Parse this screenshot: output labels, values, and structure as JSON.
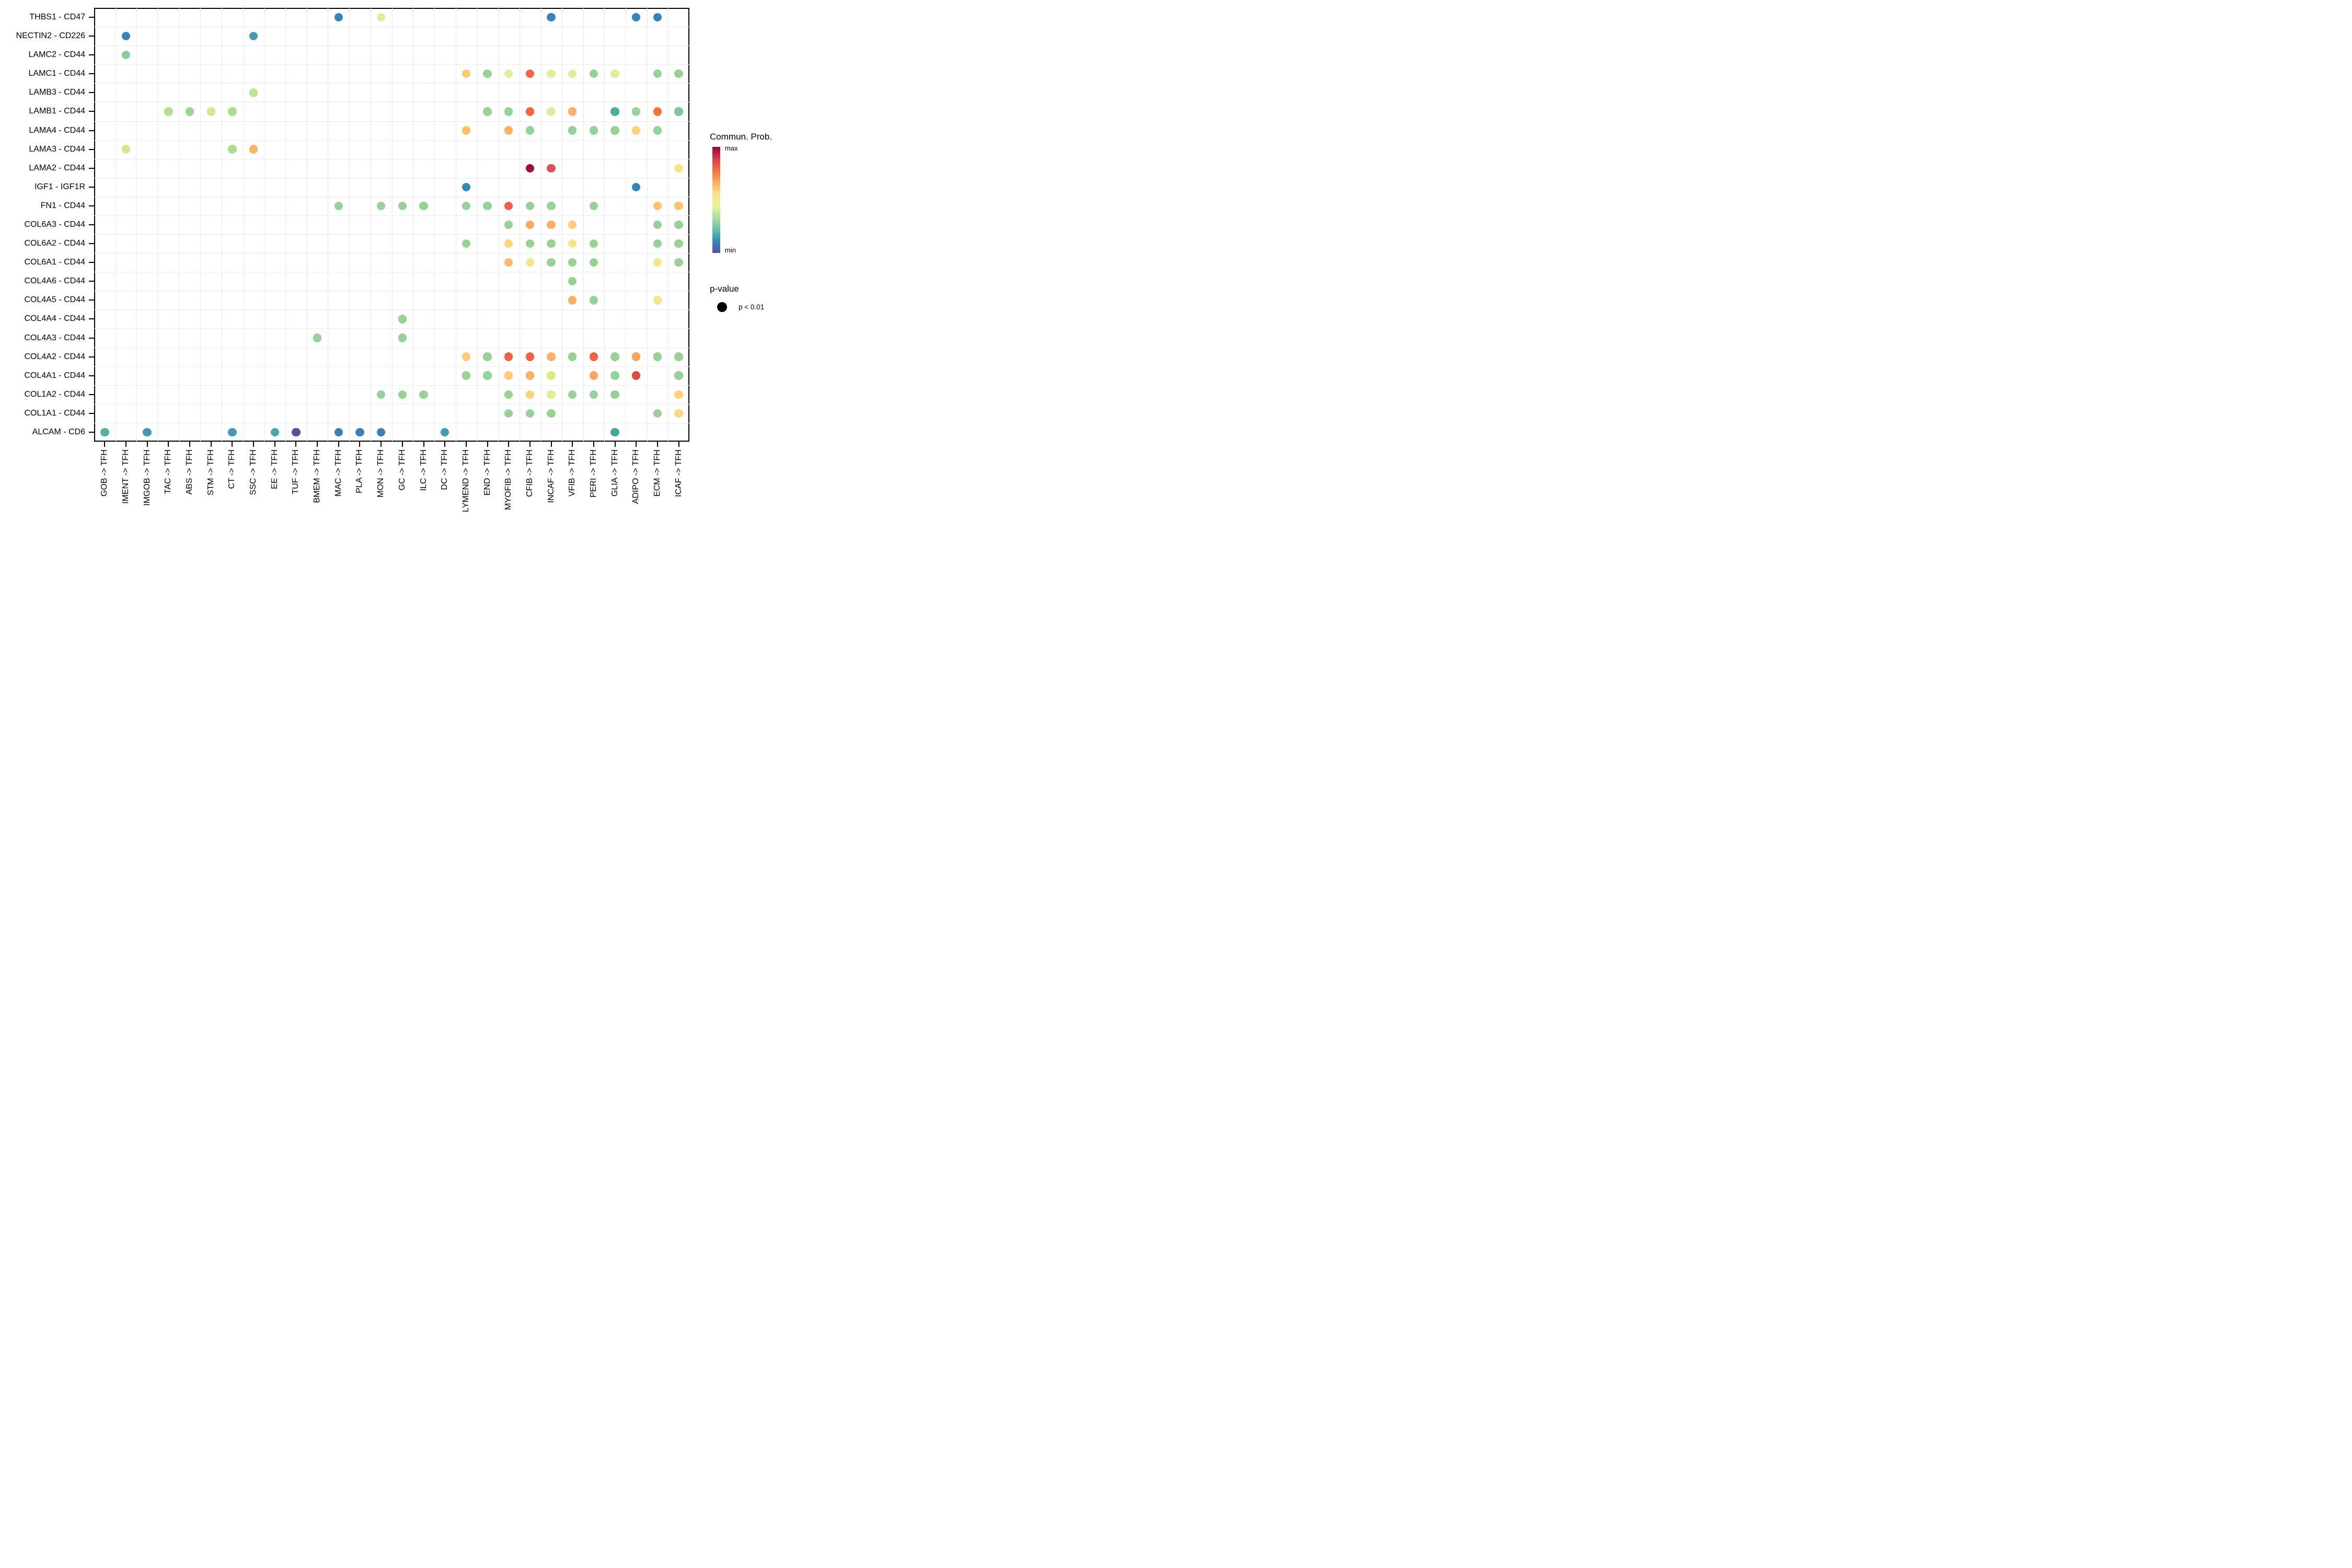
{
  "legend": {
    "color_title": "Commun. Prob.",
    "max_label": "max",
    "min_label": "min",
    "pvalue_title": "p-value",
    "pvalue_label": "p < 0.01"
  },
  "chart_data": {
    "type": "scatter",
    "subtype": "categorical dot plot (cell-cell communication bubble plot)",
    "title": "",
    "xlabel": "",
    "ylabel": "",
    "grid": true,
    "axes": {
      "x_tick_rotation_deg": 90,
      "y_side": "left",
      "x_side": "bottom"
    },
    "x_categories": [
      "GOB -> TFH",
      "IMENT -> TFH",
      "IMGOB -> TFH",
      "TAC -> TFH",
      "ABS -> TFH",
      "STM -> TFH",
      "CT -> TFH",
      "SSC -> TFH",
      "EE -> TFH",
      "TUF -> TFH",
      "BMEM -> TFH",
      "MAC -> TFH",
      "PLA -> TFH",
      "MON -> TFH",
      "GC -> TFH",
      "ILC -> TFH",
      "DC -> TFH",
      "LYMEND -> TFH",
      "END -> TFH",
      "MYOFIB -> TFH",
      "CFIB -> TFH",
      "INCAF -> TFH",
      "VFIB -> TFH",
      "PERI -> TFH",
      "GLIA -> TFH",
      "ADIPO -> TFH",
      "ECM -> TFH",
      "ICAF -> TFH"
    ],
    "y_categories": [
      "THBS1 - CD47",
      "NECTIN2 - CD226",
      "LAMC2 - CD44",
      "LAMC1 - CD44",
      "LAMB3 - CD44",
      "LAMB1 - CD44",
      "LAMA4 - CD44",
      "LAMA3 - CD44",
      "LAMA2 - CD44",
      "IGF1 - IGF1R",
      "FN1 - CD44",
      "COL6A3 - CD44",
      "COL6A2 - CD44",
      "COL6A1 - CD44",
      "COL4A6 - CD44",
      "COL4A5 - CD44",
      "COL4A4 - CD44",
      "COL4A3 - CD44",
      "COL4A2 - CD44",
      "COL4A1 - CD44",
      "COL1A2 - CD44",
      "COL1A1 - CD44",
      "ALCAM - CD6"
    ],
    "color_scale": {
      "name": "Spectral (reversed), color = communication probability",
      "max_label": "max",
      "min_label": "min",
      "gradient_top_to_bottom": [
        "#9e0142",
        "#d53e4f",
        "#f46d43",
        "#fdae61",
        "#fee08b",
        "#e6f598",
        "#abdda4",
        "#66c2a5",
        "#3288bd",
        "#5e4fa2"
      ]
    },
    "size_encoding": {
      "title": "p-value",
      "levels": [
        "p < 0.01"
      ]
    },
    "points": [
      {
        "y": "THBS1 - CD47",
        "x": "MAC -> TFH",
        "color": "#3585b8"
      },
      {
        "y": "THBS1 - CD47",
        "x": "MON -> TFH",
        "color": "#dfeda0"
      },
      {
        "y": "THBS1 - CD47",
        "x": "INCAF -> TFH",
        "color": "#3585b8"
      },
      {
        "y": "THBS1 - CD47",
        "x": "ADIPO -> TFH",
        "color": "#3585b8"
      },
      {
        "y": "THBS1 - CD47",
        "x": "ECM -> TFH",
        "color": "#3585b8"
      },
      {
        "y": "NECTIN2 - CD226",
        "x": "IMENT -> TFH",
        "color": "#3585b8"
      },
      {
        "y": "NECTIN2 - CD226",
        "x": "SSC -> TFH",
        "color": "#4399b2"
      },
      {
        "y": "LAMC2 - CD44",
        "x": "IMENT -> TFH",
        "color": "#8acc9d"
      },
      {
        "y": "LAMC1 - CD44",
        "x": "LYMEND -> TFH",
        "color": "#fdc776"
      },
      {
        "y": "LAMC1 - CD44",
        "x": "END -> TFH",
        "color": "#97d195"
      },
      {
        "y": "LAMC1 - CD44",
        "x": "MYOFIB -> TFH",
        "color": "#dcee9b"
      },
      {
        "y": "LAMC1 - CD44",
        "x": "CFIB -> TFH",
        "color": "#f1663f"
      },
      {
        "y": "LAMC1 - CD44",
        "x": "INCAF -> TFH",
        "color": "#dfee9b"
      },
      {
        "y": "LAMC1 - CD44",
        "x": "VFIB -> TFH",
        "color": "#dcee9b"
      },
      {
        "y": "LAMC1 - CD44",
        "x": "PERI -> TFH",
        "color": "#97d195"
      },
      {
        "y": "LAMC1 - CD44",
        "x": "GLIA -> TFH",
        "color": "#dcee9b"
      },
      {
        "y": "LAMC1 - CD44",
        "x": "ECM -> TFH",
        "color": "#97d195"
      },
      {
        "y": "LAMC1 - CD44",
        "x": "ICAF -> TFH",
        "color": "#97d195"
      },
      {
        "y": "LAMB3 - CD44",
        "x": "SSC -> TFH",
        "color": "#bfe38d"
      },
      {
        "y": "LAMB1 - CD44",
        "x": "TAC -> TFH",
        "color": "#b5df90"
      },
      {
        "y": "LAMB1 - CD44",
        "x": "ABS -> TFH",
        "color": "#9ed596"
      },
      {
        "y": "LAMB1 - CD44",
        "x": "STM -> TFH",
        "color": "#cfe98f"
      },
      {
        "y": "LAMB1 - CD44",
        "x": "CT -> TFH",
        "color": "#aedb90"
      },
      {
        "y": "LAMB1 - CD44",
        "x": "END -> TFH",
        "color": "#97d195"
      },
      {
        "y": "LAMB1 - CD44",
        "x": "MYOFIB -> TFH",
        "color": "#97d195"
      },
      {
        "y": "LAMB1 - CD44",
        "x": "CFIB -> TFH",
        "color": "#f1663f"
      },
      {
        "y": "LAMB1 - CD44",
        "x": "INCAF -> TFH",
        "color": "#dcee9b"
      },
      {
        "y": "LAMB1 - CD44",
        "x": "VFIB -> TFH",
        "color": "#fdb166"
      },
      {
        "y": "LAMB1 - CD44",
        "x": "GLIA -> TFH",
        "color": "#4fae9e"
      },
      {
        "y": "LAMB1 - CD44",
        "x": "ADIPO -> TFH",
        "color": "#99d19b"
      },
      {
        "y": "LAMB1 - CD44",
        "x": "ECM -> TFH",
        "color": "#f4743f"
      },
      {
        "y": "LAMB1 - CD44",
        "x": "ICAF -> TFH",
        "color": "#7cc69b"
      },
      {
        "y": "LAMA4 - CD44",
        "x": "LYMEND -> TFH",
        "color": "#fdc06c"
      },
      {
        "y": "LAMA4 - CD44",
        "x": "MYOFIB -> TFH",
        "color": "#fdb166"
      },
      {
        "y": "LAMA4 - CD44",
        "x": "CFIB -> TFH",
        "color": "#97d195"
      },
      {
        "y": "LAMA4 - CD44",
        "x": "VFIB -> TFH",
        "color": "#97d195"
      },
      {
        "y": "LAMA4 - CD44",
        "x": "PERI -> TFH",
        "color": "#97d195"
      },
      {
        "y": "LAMA4 - CD44",
        "x": "GLIA -> TFH",
        "color": "#99d19b"
      },
      {
        "y": "LAMA4 - CD44",
        "x": "ADIPO -> TFH",
        "color": "#fbd37f"
      },
      {
        "y": "LAMA4 - CD44",
        "x": "ECM -> TFH",
        "color": "#99d19b"
      },
      {
        "y": "LAMA3 - CD44",
        "x": "IMENT -> TFH",
        "color": "#cfe98f"
      },
      {
        "y": "LAMA3 - CD44",
        "x": "CT -> TFH",
        "color": "#aedb90"
      },
      {
        "y": "LAMA3 - CD44",
        "x": "SSC -> TFH",
        "color": "#fdb166"
      },
      {
        "y": "LAMA2 - CD44",
        "x": "CFIB -> TFH",
        "color": "#9e0f42"
      },
      {
        "y": "LAMA2 - CD44",
        "x": "INCAF -> TFH",
        "color": "#d9525c"
      },
      {
        "y": "LAMA2 - CD44",
        "x": "ICAF -> TFH",
        "color": "#fae28c"
      },
      {
        "y": "IGF1 - IGF1R",
        "x": "LYMEND -> TFH",
        "color": "#3585b8"
      },
      {
        "y": "IGF1 - IGF1R",
        "x": "ADIPO -> TFH",
        "color": "#3585b8"
      },
      {
        "y": "FN1 - CD44",
        "x": "MAC -> TFH",
        "color": "#97d195"
      },
      {
        "y": "FN1 - CD44",
        "x": "MON -> TFH",
        "color": "#97d195"
      },
      {
        "y": "FN1 - CD44",
        "x": "GC -> TFH",
        "color": "#97d195"
      },
      {
        "y": "FN1 - CD44",
        "x": "ILC -> TFH",
        "color": "#97d195"
      },
      {
        "y": "FN1 - CD44",
        "x": "LYMEND -> TFH",
        "color": "#97d195"
      },
      {
        "y": "FN1 - CD44",
        "x": "END -> TFH",
        "color": "#97d195"
      },
      {
        "y": "FN1 - CD44",
        "x": "MYOFIB -> TFH",
        "color": "#ec6046"
      },
      {
        "y": "FN1 - CD44",
        "x": "CFIB -> TFH",
        "color": "#97d195"
      },
      {
        "y": "FN1 - CD44",
        "x": "INCAF -> TFH",
        "color": "#97d195"
      },
      {
        "y": "FN1 - CD44",
        "x": "PERI -> TFH",
        "color": "#97d195"
      },
      {
        "y": "FN1 - CD44",
        "x": "ECM -> TFH",
        "color": "#fdc272"
      },
      {
        "y": "FN1 - CD44",
        "x": "ICAF -> TFH",
        "color": "#fdc272"
      },
      {
        "y": "COL6A3 - CD44",
        "x": "MYOFIB -> TFH",
        "color": "#97d195"
      },
      {
        "y": "COL6A3 - CD44",
        "x": "CFIB -> TFH",
        "color": "#fda763"
      },
      {
        "y": "COL6A3 - CD44",
        "x": "INCAF -> TFH",
        "color": "#fdaf66"
      },
      {
        "y": "COL6A3 - CD44",
        "x": "VFIB -> TFH",
        "color": "#fdcf7d"
      },
      {
        "y": "COL6A3 - CD44",
        "x": "ECM -> TFH",
        "color": "#97d195"
      },
      {
        "y": "COL6A3 - CD44",
        "x": "ICAF -> TFH",
        "color": "#97d195"
      },
      {
        "y": "COL6A2 - CD44",
        "x": "LYMEND -> TFH",
        "color": "#97d195"
      },
      {
        "y": "COL6A2 - CD44",
        "x": "MYOFIB -> TFH",
        "color": "#fdd47e"
      },
      {
        "y": "COL6A2 - CD44",
        "x": "CFIB -> TFH",
        "color": "#97d195"
      },
      {
        "y": "COL6A2 - CD44",
        "x": "INCAF -> TFH",
        "color": "#97d195"
      },
      {
        "y": "COL6A2 - CD44",
        "x": "VFIB -> TFH",
        "color": "#fae28c"
      },
      {
        "y": "COL6A2 - CD44",
        "x": "PERI -> TFH",
        "color": "#97d195"
      },
      {
        "y": "COL6A2 - CD44",
        "x": "ECM -> TFH",
        "color": "#97d195"
      },
      {
        "y": "COL6A2 - CD44",
        "x": "ICAF -> TFH",
        "color": "#97d195"
      },
      {
        "y": "COL6A1 - CD44",
        "x": "MYOFIB -> TFH",
        "color": "#fdb76b"
      },
      {
        "y": "COL6A1 - CD44",
        "x": "CFIB -> TFH",
        "color": "#fae28c"
      },
      {
        "y": "COL6A1 - CD44",
        "x": "INCAF -> TFH",
        "color": "#97d195"
      },
      {
        "y": "COL6A1 - CD44",
        "x": "VFIB -> TFH",
        "color": "#97d195"
      },
      {
        "y": "COL6A1 - CD44",
        "x": "PERI -> TFH",
        "color": "#97d195"
      },
      {
        "y": "COL6A1 - CD44",
        "x": "ECM -> TFH",
        "color": "#fae28c"
      },
      {
        "y": "COL6A1 - CD44",
        "x": "ICAF -> TFH",
        "color": "#97d195"
      },
      {
        "y": "COL4A6 - CD44",
        "x": "VFIB -> TFH",
        "color": "#97d195"
      },
      {
        "y": "COL4A5 - CD44",
        "x": "VFIB -> TFH",
        "color": "#fdb166"
      },
      {
        "y": "COL4A5 - CD44",
        "x": "PERI -> TFH",
        "color": "#97d195"
      },
      {
        "y": "COL4A5 - CD44",
        "x": "ECM -> TFH",
        "color": "#fae28c"
      },
      {
        "y": "COL4A4 - CD44",
        "x": "GC -> TFH",
        "color": "#97d195"
      },
      {
        "y": "COL4A3 - CD44",
        "x": "BMEM -> TFH",
        "color": "#97d195"
      },
      {
        "y": "COL4A3 - CD44",
        "x": "GC -> TFH",
        "color": "#97d195"
      },
      {
        "y": "COL4A2 - CD44",
        "x": "LYMEND -> TFH",
        "color": "#fdc97b"
      },
      {
        "y": "COL4A2 - CD44",
        "x": "END -> TFH",
        "color": "#97d195"
      },
      {
        "y": "COL4A2 - CD44",
        "x": "MYOFIB -> TFH",
        "color": "#ed6144"
      },
      {
        "y": "COL4A2 - CD44",
        "x": "CFIB -> TFH",
        "color": "#ed6144"
      },
      {
        "y": "COL4A2 - CD44",
        "x": "INCAF -> TFH",
        "color": "#fdb166"
      },
      {
        "y": "COL4A2 - CD44",
        "x": "VFIB -> TFH",
        "color": "#97d195"
      },
      {
        "y": "COL4A2 - CD44",
        "x": "PERI -> TFH",
        "color": "#ed6144"
      },
      {
        "y": "COL4A2 - CD44",
        "x": "GLIA -> TFH",
        "color": "#97d195"
      },
      {
        "y": "COL4A2 - CD44",
        "x": "ADIPO -> TFH",
        "color": "#fda35c"
      },
      {
        "y": "COL4A2 - CD44",
        "x": "ECM -> TFH",
        "color": "#97d195"
      },
      {
        "y": "COL4A2 - CD44",
        "x": "ICAF -> TFH",
        "color": "#97d195"
      },
      {
        "y": "COL4A1 - CD44",
        "x": "LYMEND -> TFH",
        "color": "#97d195"
      },
      {
        "y": "COL4A1 - CD44",
        "x": "END -> TFH",
        "color": "#97d195"
      },
      {
        "y": "COL4A1 - CD44",
        "x": "MYOFIB -> TFH",
        "color": "#fdc97b"
      },
      {
        "y": "COL4A1 - CD44",
        "x": "CFIB -> TFH",
        "color": "#fdb061"
      },
      {
        "y": "COL4A1 - CD44",
        "x": "INCAF -> TFH",
        "color": "#d9ec80"
      },
      {
        "y": "COL4A1 - CD44",
        "x": "PERI -> TFH",
        "color": "#fda65e"
      },
      {
        "y": "COL4A1 - CD44",
        "x": "GLIA -> TFH",
        "color": "#97d195"
      },
      {
        "y": "COL4A1 - CD44",
        "x": "ADIPO -> TFH",
        "color": "#dd4a41"
      },
      {
        "y": "COL4A1 - CD44",
        "x": "ICAF -> TFH",
        "color": "#97d195"
      },
      {
        "y": "COL1A2 - CD44",
        "x": "MON -> TFH",
        "color": "#97d195"
      },
      {
        "y": "COL1A2 - CD44",
        "x": "GC -> TFH",
        "color": "#97d195"
      },
      {
        "y": "COL1A2 - CD44",
        "x": "ILC -> TFH",
        "color": "#97d195"
      },
      {
        "y": "COL1A2 - CD44",
        "x": "MYOFIB -> TFH",
        "color": "#97d195"
      },
      {
        "y": "COL1A2 - CD44",
        "x": "CFIB -> TFH",
        "color": "#fdd07c"
      },
      {
        "y": "COL1A2 - CD44",
        "x": "INCAF -> TFH",
        "color": "#dcee8e"
      },
      {
        "y": "COL1A2 - CD44",
        "x": "VFIB -> TFH",
        "color": "#97d195"
      },
      {
        "y": "COL1A2 - CD44",
        "x": "PERI -> TFH",
        "color": "#97d195"
      },
      {
        "y": "COL1A2 - CD44",
        "x": "GLIA -> TFH",
        "color": "#97d195"
      },
      {
        "y": "COL1A2 - CD44",
        "x": "ICAF -> TFH",
        "color": "#fdd07c"
      },
      {
        "y": "COL1A1 - CD44",
        "x": "MYOFIB -> TFH",
        "color": "#97d195"
      },
      {
        "y": "COL1A1 - CD44",
        "x": "CFIB -> TFH",
        "color": "#97d195"
      },
      {
        "y": "COL1A1 - CD44",
        "x": "INCAF -> TFH",
        "color": "#97d195"
      },
      {
        "y": "COL1A1 - CD44",
        "x": "ECM -> TFH",
        "color": "#97d195"
      },
      {
        "y": "COL1A1 - CD44",
        "x": "ICAF -> TFH",
        "color": "#fdd87e"
      },
      {
        "y": "ALCAM - CD6",
        "x": "GOB -> TFH",
        "color": "#52b0a4"
      },
      {
        "y": "ALCAM - CD6",
        "x": "IMGOB -> TFH",
        "color": "#4399b2"
      },
      {
        "y": "ALCAM - CD6",
        "x": "CT -> TFH",
        "color": "#4399b2"
      },
      {
        "y": "ALCAM - CD6",
        "x": "EE -> TFH",
        "color": "#4aa9a6"
      },
      {
        "y": "ALCAM - CD6",
        "x": "TUF -> TFH",
        "color": "#5f4ba0"
      },
      {
        "y": "ALCAM - CD6",
        "x": "MAC -> TFH",
        "color": "#3a80b7"
      },
      {
        "y": "ALCAM - CD6",
        "x": "PLA -> TFH",
        "color": "#3a80b7"
      },
      {
        "y": "ALCAM - CD6",
        "x": "MON -> TFH",
        "color": "#3a80b7"
      },
      {
        "y": "ALCAM - CD6",
        "x": "DC -> TFH",
        "color": "#3d9cae"
      },
      {
        "y": "ALCAM - CD6",
        "x": "GLIA -> TFH",
        "color": "#45a69c"
      }
    ]
  }
}
